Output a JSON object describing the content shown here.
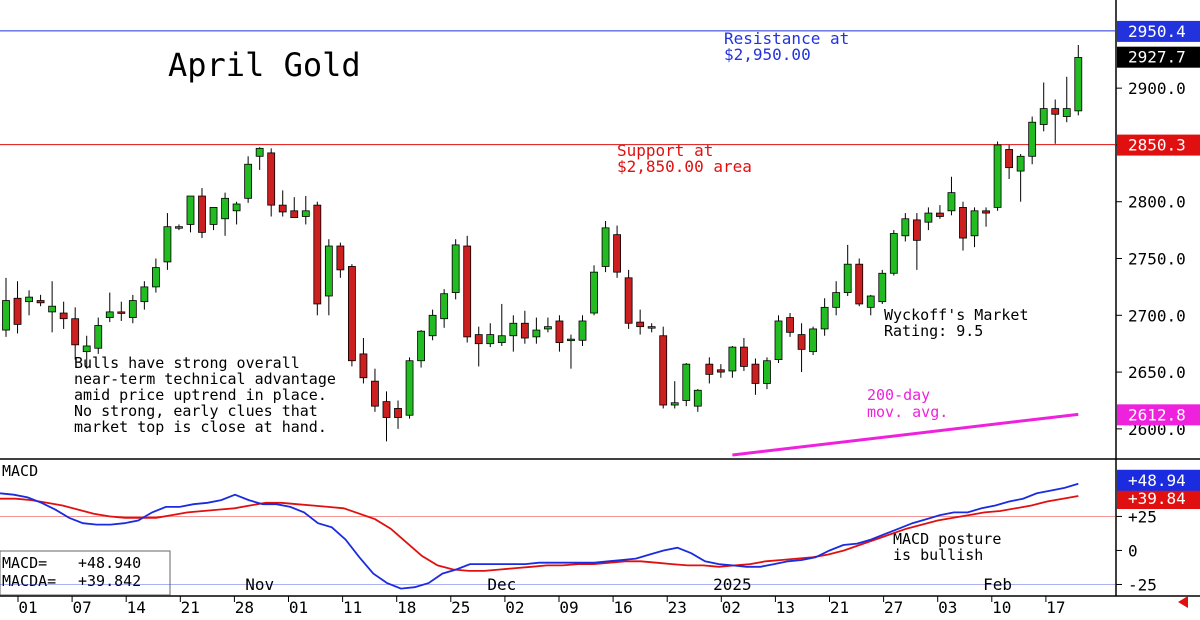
{
  "chart_title": "April Gold",
  "colors": {
    "up": "#22bb22",
    "down": "#cc1f1f",
    "resistance": "#2233dd",
    "support": "#e01010",
    "ma": "#ee22dd",
    "macd": "#1a2be0",
    "macda": "#e01010",
    "grid": "#aaaaaa"
  },
  "annotations": {
    "resistance": [
      "Resistance at",
      "$2,950.00"
    ],
    "support": [
      "Support at",
      "$2,850.00 area"
    ],
    "wyckoff": [
      "Wyckoff's Market",
      "Rating: 9.5"
    ],
    "ma": [
      "200-day",
      "mov. avg."
    ],
    "commentary": [
      "Bulls have strong overall",
      "near-term technical advantage",
      "amid price uptrend in place.",
      "No strong, early clues that",
      "market top is close at hand."
    ],
    "macd_note": [
      "MACD posture",
      "is bullish"
    ]
  },
  "macd_panel": {
    "title": "MACD",
    "macd_label": "MACD=",
    "macd_value": "+48.940",
    "macda_label": "MACDA=",
    "macda_value": "+39.842"
  },
  "price_badges": {
    "resistance": "2950.4",
    "last": "2927.7",
    "support": "2850.3",
    "ma": "2612.8"
  },
  "macd_badges": {
    "macd": "+48.94",
    "macda": "+39.84"
  },
  "month_labels": [
    {
      "label": "Nov",
      "index": 22
    },
    {
      "label": "Dec",
      "index": 43
    },
    {
      "label": "2025",
      "index": 63
    },
    {
      "label": "Feb",
      "index": 86
    }
  ],
  "footer_arrow": "left-arrow-icon",
  "chart_data": {
    "type": "candlestick",
    "title": "April Gold",
    "x_labels": [
      "01",
      "07",
      "14",
      "21",
      "28",
      "01",
      "11",
      "18",
      "25",
      "02",
      "09",
      "16",
      "23",
      "02",
      "13",
      "21",
      "27",
      "03",
      "10",
      "17"
    ],
    "y_ticks": [
      2600.0,
      2650.0,
      2700.0,
      2750.0,
      2800.0,
      2850.0,
      2900.0
    ],
    "y_tick_labels": [
      "2600.0",
      "2650.0",
      "2700.0",
      "2750.0",
      "2800.0",
      "2850.0",
      "2900.0"
    ],
    "ylim": [
      2577,
      2960
    ],
    "candles": [
      {
        "o": 2687,
        "h": 2733,
        "l": 2681,
        "c": 2713
      },
      {
        "o": 2715,
        "h": 2730,
        "l": 2684,
        "c": 2692
      },
      {
        "o": 2712,
        "h": 2722,
        "l": 2700,
        "c": 2716
      },
      {
        "o": 2713,
        "h": 2718,
        "l": 2708,
        "c": 2711
      },
      {
        "o": 2703,
        "h": 2730,
        "l": 2685,
        "c": 2708
      },
      {
        "o": 2702,
        "h": 2712,
        "l": 2688,
        "c": 2697
      },
      {
        "o": 2697,
        "h": 2707,
        "l": 2661,
        "c": 2674
      },
      {
        "o": 2668,
        "h": 2682,
        "l": 2653,
        "c": 2673
      },
      {
        "o": 2671,
        "h": 2698,
        "l": 2666,
        "c": 2691
      },
      {
        "o": 2698,
        "h": 2720,
        "l": 2694,
        "c": 2703
      },
      {
        "o": 2703,
        "h": 2712,
        "l": 2695,
        "c": 2702
      },
      {
        "o": 2698,
        "h": 2718,
        "l": 2693,
        "c": 2713
      },
      {
        "o": 2712,
        "h": 2730,
        "l": 2705,
        "c": 2725
      },
      {
        "o": 2725,
        "h": 2750,
        "l": 2720,
        "c": 2742
      },
      {
        "o": 2747,
        "h": 2790,
        "l": 2740,
        "c": 2778
      },
      {
        "o": 2778,
        "h": 2780,
        "l": 2775,
        "c": 2778
      },
      {
        "o": 2780,
        "h": 2805,
        "l": 2773,
        "c": 2805
      },
      {
        "o": 2805,
        "h": 2812,
        "l": 2768,
        "c": 2773
      },
      {
        "o": 2780,
        "h": 2795,
        "l": 2775,
        "c": 2795
      },
      {
        "o": 2785,
        "h": 2808,
        "l": 2770,
        "c": 2803
      },
      {
        "o": 2792,
        "h": 2800,
        "l": 2780,
        "c": 2798
      },
      {
        "o": 2803,
        "h": 2840,
        "l": 2799,
        "c": 2833
      },
      {
        "o": 2840,
        "h": 2848,
        "l": 2828,
        "c": 2847
      },
      {
        "o": 2843,
        "h": 2847,
        "l": 2787,
        "c": 2797
      },
      {
        "o": 2797,
        "h": 2810,
        "l": 2787,
        "c": 2791
      },
      {
        "o": 2792,
        "h": 2804,
        "l": 2788,
        "c": 2786
      },
      {
        "o": 2787,
        "h": 2805,
        "l": 2780,
        "c": 2792
      },
      {
        "o": 2797,
        "h": 2800,
        "l": 2700,
        "c": 2710
      },
      {
        "o": 2717,
        "h": 2767,
        "l": 2700,
        "c": 2761
      },
      {
        "o": 2761,
        "h": 2764,
        "l": 2733,
        "c": 2740
      },
      {
        "o": 2743,
        "h": 2745,
        "l": 2655,
        "c": 2660
      },
      {
        "o": 2666,
        "h": 2680,
        "l": 2640,
        "c": 2645
      },
      {
        "o": 2642,
        "h": 2653,
        "l": 2615,
        "c": 2620
      },
      {
        "o": 2624,
        "h": 2633,
        "l": 2589,
        "c": 2610
      },
      {
        "o": 2618,
        "h": 2625,
        "l": 2600,
        "c": 2610
      },
      {
        "o": 2612,
        "h": 2663,
        "l": 2609,
        "c": 2660
      },
      {
        "o": 2660,
        "h": 2687,
        "l": 2654,
        "c": 2686
      },
      {
        "o": 2682,
        "h": 2705,
        "l": 2678,
        "c": 2700
      },
      {
        "o": 2697,
        "h": 2723,
        "l": 2689,
        "c": 2719
      },
      {
        "o": 2720,
        "h": 2767,
        "l": 2714,
        "c": 2762
      },
      {
        "o": 2761,
        "h": 2770,
        "l": 2676,
        "c": 2681
      },
      {
        "o": 2683,
        "h": 2690,
        "l": 2655,
        "c": 2675
      },
      {
        "o": 2675,
        "h": 2693,
        "l": 2672,
        "c": 2683
      },
      {
        "o": 2676,
        "h": 2710,
        "l": 2673,
        "c": 2682
      },
      {
        "o": 2682,
        "h": 2700,
        "l": 2668,
        "c": 2693
      },
      {
        "o": 2693,
        "h": 2704,
        "l": 2675,
        "c": 2680
      },
      {
        "o": 2681,
        "h": 2698,
        "l": 2675,
        "c": 2687
      },
      {
        "o": 2688,
        "h": 2698,
        "l": 2685,
        "c": 2690
      },
      {
        "o": 2695,
        "h": 2700,
        "l": 2668,
        "c": 2676
      },
      {
        "o": 2678,
        "h": 2683,
        "l": 2653,
        "c": 2679
      },
      {
        "o": 2678,
        "h": 2700,
        "l": 2673,
        "c": 2695
      },
      {
        "o": 2702,
        "h": 2744,
        "l": 2700,
        "c": 2738
      },
      {
        "o": 2743,
        "h": 2783,
        "l": 2738,
        "c": 2777
      },
      {
        "o": 2771,
        "h": 2779,
        "l": 2733,
        "c": 2738
      },
      {
        "o": 2733,
        "h": 2740,
        "l": 2688,
        "c": 2693
      },
      {
        "o": 2694,
        "h": 2705,
        "l": 2683,
        "c": 2690
      },
      {
        "o": 2690,
        "h": 2693,
        "l": 2685,
        "c": 2690
      },
      {
        "o": 2682,
        "h": 2690,
        "l": 2618,
        "c": 2621
      },
      {
        "o": 2621,
        "h": 2642,
        "l": 2618,
        "c": 2623
      },
      {
        "o": 2625,
        "h": 2658,
        "l": 2620,
        "c": 2657
      },
      {
        "o": 2620,
        "h": 2635,
        "l": 2615,
        "c": 2634
      },
      {
        "o": 2657,
        "h": 2663,
        "l": 2640,
        "c": 2648
      },
      {
        "o": 2652,
        "h": 2657,
        "l": 2645,
        "c": 2650
      },
      {
        "o": 2651,
        "h": 2673,
        "l": 2645,
        "c": 2672
      },
      {
        "o": 2672,
        "h": 2680,
        "l": 2651,
        "c": 2655
      },
      {
        "o": 2657,
        "h": 2662,
        "l": 2630,
        "c": 2640
      },
      {
        "o": 2640,
        "h": 2663,
        "l": 2635,
        "c": 2660
      },
      {
        "o": 2661,
        "h": 2700,
        "l": 2658,
        "c": 2695
      },
      {
        "o": 2698,
        "h": 2702,
        "l": 2681,
        "c": 2685
      },
      {
        "o": 2683,
        "h": 2693,
        "l": 2650,
        "c": 2670
      },
      {
        "o": 2668,
        "h": 2690,
        "l": 2665,
        "c": 2688
      },
      {
        "o": 2688,
        "h": 2715,
        "l": 2682,
        "c": 2707
      },
      {
        "o": 2707,
        "h": 2730,
        "l": 2700,
        "c": 2720
      },
      {
        "o": 2720,
        "h": 2762,
        "l": 2717,
        "c": 2745
      },
      {
        "o": 2745,
        "h": 2750,
        "l": 2708,
        "c": 2710
      },
      {
        "o": 2707,
        "h": 2718,
        "l": 2700,
        "c": 2717
      },
      {
        "o": 2712,
        "h": 2740,
        "l": 2710,
        "c": 2737
      },
      {
        "o": 2737,
        "h": 2775,
        "l": 2735,
        "c": 2772
      },
      {
        "o": 2770,
        "h": 2790,
        "l": 2765,
        "c": 2785
      },
      {
        "o": 2784,
        "h": 2790,
        "l": 2740,
        "c": 2766
      },
      {
        "o": 2782,
        "h": 2795,
        "l": 2775,
        "c": 2790
      },
      {
        "o": 2790,
        "h": 2797,
        "l": 2785,
        "c": 2787
      },
      {
        "o": 2792,
        "h": 2822,
        "l": 2788,
        "c": 2808
      },
      {
        "o": 2795,
        "h": 2800,
        "l": 2757,
        "c": 2768
      },
      {
        "o": 2770,
        "h": 2795,
        "l": 2760,
        "c": 2792
      },
      {
        "o": 2792,
        "h": 2795,
        "l": 2778,
        "c": 2790
      },
      {
        "o": 2795,
        "h": 2853,
        "l": 2792,
        "c": 2850
      },
      {
        "o": 2846,
        "h": 2850,
        "l": 2820,
        "c": 2830
      },
      {
        "o": 2827,
        "h": 2842,
        "l": 2800,
        "c": 2840
      },
      {
        "o": 2840,
        "h": 2875,
        "l": 2833,
        "c": 2870
      },
      {
        "o": 2868,
        "h": 2905,
        "l": 2862,
        "c": 2882
      },
      {
        "o": 2882,
        "h": 2890,
        "l": 2851,
        "c": 2877
      },
      {
        "o": 2875,
        "h": 2910,
        "l": 2870,
        "c": 2882
      },
      {
        "o": 2880,
        "h": 2938,
        "l": 2876,
        "c": 2927
      }
    ],
    "ma_200": {
      "start_index": 63,
      "start": 2577,
      "end": 2612.8
    },
    "macd": {
      "ylim": [
        -32,
        65
      ],
      "y_ticks": [
        25,
        0,
        -25
      ],
      "y_tick_labels": [
        "+25",
        "0",
        "-25"
      ],
      "macd_series": [
        42,
        41,
        39,
        35,
        30,
        24,
        20,
        19,
        19,
        20,
        22,
        28,
        32,
        32,
        34,
        35,
        37,
        41,
        37,
        34,
        34,
        32,
        28,
        20,
        17,
        8,
        -5,
        -17,
        -24,
        -28,
        -27,
        -24,
        -17,
        -14,
        -10,
        -10,
        -10,
        -10,
        -10,
        -9,
        -9,
        -9,
        -9,
        -9,
        -8,
        -7,
        -6,
        -3,
        0,
        2,
        -2,
        -8,
        -10,
        -11,
        -12,
        -12,
        -10,
        -8,
        -7,
        -5,
        0,
        4,
        5,
        8,
        12,
        16,
        20,
        23,
        26,
        28,
        28,
        31,
        33,
        36,
        38,
        42,
        44,
        46,
        49
      ],
      "macda_series": [
        38,
        38,
        37,
        35,
        33,
        30,
        27,
        25,
        24,
        24,
        24,
        26,
        28,
        29,
        30,
        31,
        33,
        35,
        35,
        34,
        33,
        32,
        31,
        27,
        23,
        16,
        6,
        -4,
        -11,
        -14,
        -15,
        -15,
        -14,
        -13,
        -12,
        -11,
        -11,
        -10,
        -10,
        -9,
        -8,
        -8,
        -9,
        -10,
        -11,
        -11,
        -12,
        -11,
        -10,
        -8,
        -7,
        -6,
        -5,
        -3,
        0,
        4,
        8,
        12,
        16,
        19,
        22,
        24,
        26,
        28,
        29,
        31,
        33,
        36,
        38,
        40
      ],
      "macd_first_index": 0,
      "macda_first_index": 0
    }
  }
}
